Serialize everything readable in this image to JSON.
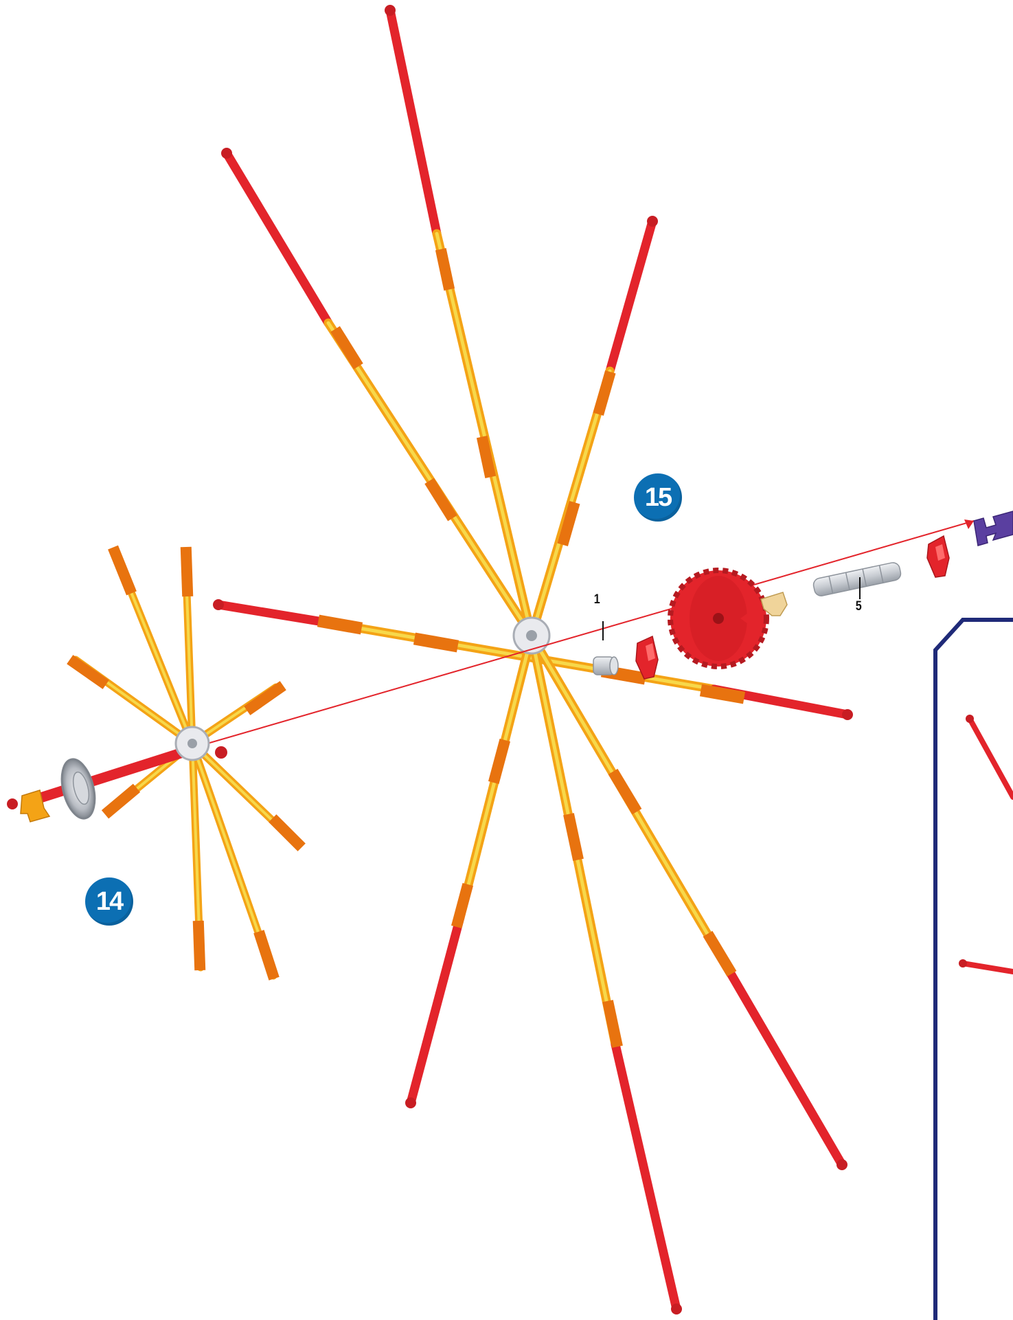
{
  "steps": {
    "step_15": "15",
    "step_14": "14"
  },
  "callouts": {
    "spacer_qty": "1",
    "spacer_group_qty": "5"
  },
  "colors": {
    "badge": "#0c6fb3",
    "rod_red": "#e3242b",
    "connector_orange": "#e8730f",
    "rod_yellow": "#f7c60a",
    "frame_navy": "#1f2a78",
    "clip_purple": "#5a3fa0",
    "part_grey": "#c8ccd2",
    "part_tan": "#f0d49a"
  },
  "icons": {
    "gear": "gear-icon",
    "hub": "hub-connector-icon",
    "clip": "clip-icon",
    "wheel": "wheel-icon"
  }
}
